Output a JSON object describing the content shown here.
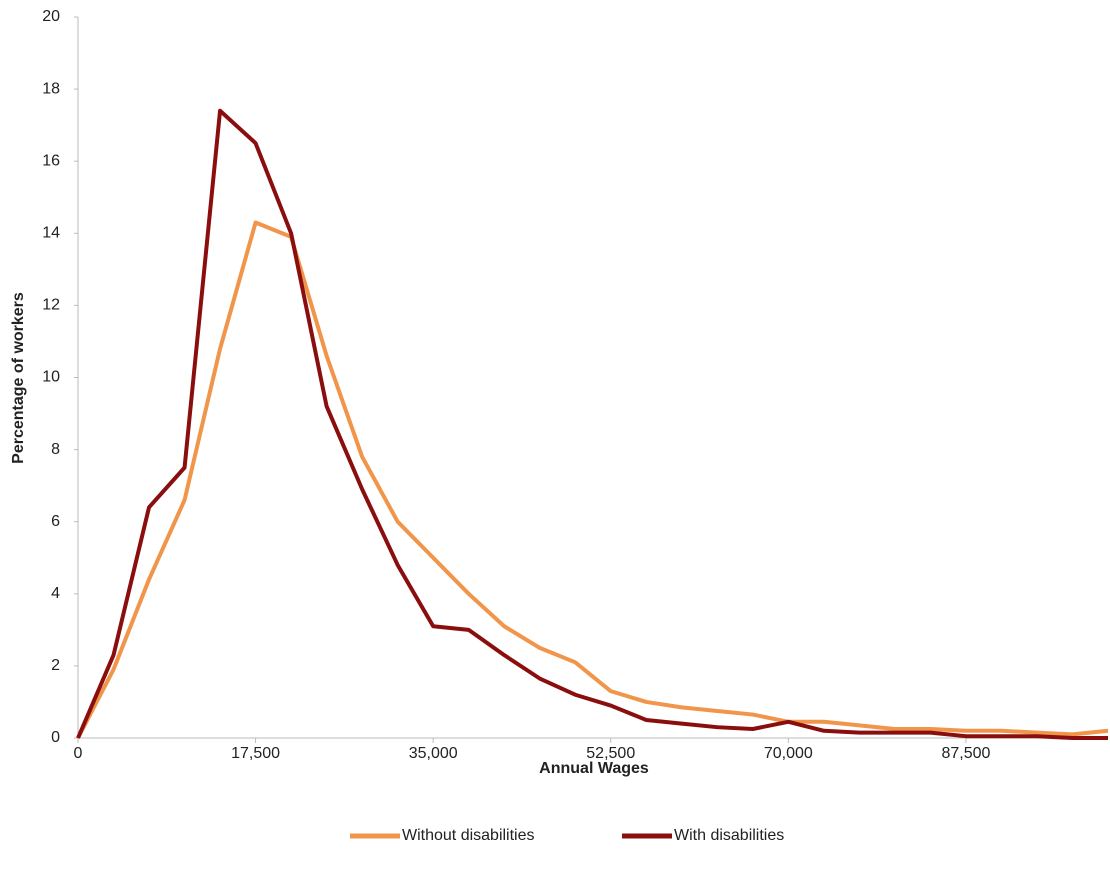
{
  "chart_data": {
    "type": "line",
    "x_label": "Annual Wages",
    "y_label": "Percentage of workers",
    "x": [
      0,
      3500,
      7000,
      10500,
      14000,
      17500,
      21000,
      24500,
      28000,
      31500,
      35000,
      38500,
      42000,
      45500,
      49000,
      52500,
      56000,
      59500,
      63000,
      66500,
      70000,
      73500,
      77000,
      80500,
      84000,
      87500,
      91000,
      94500,
      98000,
      101500
    ],
    "series": [
      {
        "name": "Without disabilities",
        "color": "#f0954a",
        "values": [
          0,
          1.9,
          4.4,
          6.6,
          10.8,
          14.3,
          13.9,
          10.6,
          7.8,
          6.0,
          5.0,
          4.0,
          3.1,
          2.5,
          2.1,
          1.3,
          1.0,
          0.85,
          0.75,
          0.65,
          0.45,
          0.45,
          0.35,
          0.25,
          0.25,
          0.2,
          0.2,
          0.15,
          0.1,
          0.2
        ]
      },
      {
        "name": "With disabilities",
        "color": "#8b0e0e",
        "values": [
          0,
          2.3,
          6.4,
          7.5,
          17.4,
          16.5,
          14.0,
          9.2,
          6.9,
          4.8,
          3.1,
          3.0,
          2.3,
          1.65,
          1.2,
          0.9,
          0.5,
          0.4,
          0.3,
          0.25,
          0.45,
          0.2,
          0.15,
          0.15,
          0.15,
          0.05,
          0.05,
          0.05,
          0,
          0
        ]
      }
    ],
    "xlim": [
      0,
      101500
    ],
    "xticks": [
      0,
      {
        "value": 17500,
        "label": "17,500"
      },
      {
        "value": 35000,
        "label": "35,000"
      },
      {
        "value": 52500,
        "label": "52,500"
      },
      {
        "value": 70000,
        "label": "70,000"
      },
      {
        "value": 87500,
        "label": "87,500"
      }
    ],
    "ylim": [
      0,
      20
    ],
    "yticks": [
      0,
      2,
      4,
      6,
      8,
      10,
      12,
      14,
      16,
      18,
      20
    ],
    "grid": false,
    "legend": "bottom"
  }
}
